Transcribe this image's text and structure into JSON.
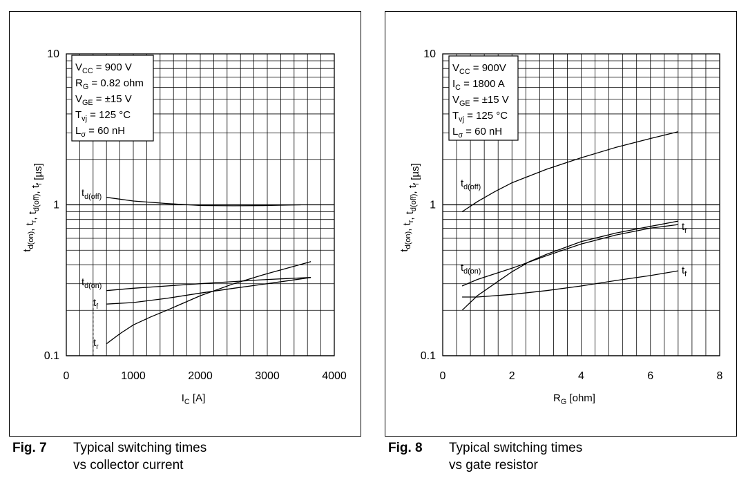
{
  "charts": [
    {
      "fig_label": "Fig. 7",
      "caption_line1": "Typical switching times",
      "caption_line2": "vs collector current",
      "chart_data": {
        "type": "line",
        "xlabel_main": "I",
        "xlabel_sub": "C",
        "xlabel_unit": " [A]",
        "ylabel": "t_d(on), t_r, t_d(off), t_f [µs]",
        "xlim": [
          0,
          4000
        ],
        "ylim": [
          0.1,
          10
        ],
        "y_scale": "log",
        "grid": true,
        "x_ticks": [
          "0",
          "1000",
          "2000",
          "3000",
          "4000"
        ],
        "y_ticks": [
          "0.1",
          "1",
          "10"
        ],
        "conditions": [
          {
            "main": "V",
            "sub": "CC",
            "rest": " = 900 V"
          },
          {
            "main": "R",
            "sub": "G",
            "rest": " = 0.82 ohm"
          },
          {
            "main": "V",
            "sub": "GE",
            "rest": " = ±15 V"
          },
          {
            "main": "T",
            "sub": "vj",
            "rest": " = 125 °C"
          },
          {
            "main": "L",
            "sub": "σ",
            "rest": " = 60 nH"
          }
        ],
        "series": [
          {
            "name_main": "t",
            "name_sub": "d(off)",
            "x": [
              600,
              1000,
              1500,
              2000,
              2500,
              3000,
              3500
            ],
            "y": [
              1.12,
              1.06,
              1.02,
              0.99,
              0.985,
              0.99,
              1.0
            ]
          },
          {
            "name_main": "t",
            "name_sub": "d(on)",
            "x": [
              600,
              1000,
              1500,
              2000,
              2500,
              3000,
              3650
            ],
            "y": [
              0.27,
              0.28,
              0.29,
              0.3,
              0.31,
              0.32,
              0.33
            ]
          },
          {
            "name_main": "t",
            "name_sub": "f",
            "x": [
              600,
              1000,
              1500,
              2000,
              2500,
              3000,
              3650
            ],
            "y": [
              0.22,
              0.225,
              0.24,
              0.26,
              0.28,
              0.3,
              0.33
            ]
          },
          {
            "name_main": "t",
            "name_sub": "r",
            "x": [
              600,
              800,
              1000,
              1250,
              1500,
              2000,
              2500,
              3000,
              3650
            ],
            "y": [
              0.12,
              0.14,
              0.16,
              0.18,
              0.2,
              0.25,
              0.3,
              0.35,
              0.42
            ]
          }
        ]
      }
    },
    {
      "fig_label": "Fig. 8",
      "caption_line1": "Typical switching times",
      "caption_line2": "vs  gate resistor",
      "chart_data": {
        "type": "line",
        "xlabel_main": "R",
        "xlabel_sub": "G",
        "xlabel_unit": " [ohm]",
        "ylabel": "t_d(on), t_r, t_d(off), t_f [µs]",
        "xlim": [
          0,
          8
        ],
        "ylim": [
          0.1,
          10
        ],
        "y_scale": "log",
        "grid": true,
        "x_ticks": [
          "0",
          "2",
          "4",
          "6",
          "8"
        ],
        "y_ticks": [
          "0.1",
          "1",
          "10"
        ],
        "conditions": [
          {
            "main": "V",
            "sub": "CC",
            "rest": " = 900V"
          },
          {
            "main": "I",
            "sub": "C",
            "rest": " = 1800 A"
          },
          {
            "main": "V",
            "sub": "GE",
            "rest": " = ±15 V"
          },
          {
            "main": "T",
            "sub": "vj",
            "rest": " = 125 °C"
          },
          {
            "main": "L",
            "sub": "σ",
            "rest": " = 60 nH"
          }
        ],
        "series": [
          {
            "name_main": "t",
            "name_sub": "d(off)",
            "x": [
              0.56,
              1.0,
              1.5,
              2.0,
              3.0,
              4.0,
              5.0,
              6.0,
              6.8
            ],
            "y": [
              0.9,
              1.05,
              1.22,
              1.4,
              1.72,
              2.05,
              2.4,
              2.75,
              3.05
            ]
          },
          {
            "name_main": "t",
            "name_sub": "r",
            "x": [
              0.56,
              1.0,
              1.5,
              2.0,
              2.5,
              3.0,
              4.0,
              5.0,
              6.0,
              6.8
            ],
            "y": [
              0.2,
              0.25,
              0.3,
              0.36,
              0.42,
              0.47,
              0.57,
              0.65,
              0.72,
              0.78
            ]
          },
          {
            "name_main": "t",
            "name_sub": "d(on)",
            "x": [
              0.56,
              1.0,
              2.0,
              3.0,
              4.0,
              5.0,
              6.0,
              6.8
            ],
            "y": [
              0.29,
              0.32,
              0.38,
              0.46,
              0.55,
              0.63,
              0.7,
              0.74
            ]
          },
          {
            "name_main": "t",
            "name_sub": "f",
            "x": [
              0.56,
              1.0,
              2.0,
              3.0,
              4.0,
              5.0,
              6.0,
              6.8
            ],
            "y": [
              0.245,
              0.245,
              0.255,
              0.27,
              0.29,
              0.315,
              0.34,
              0.365
            ]
          }
        ]
      }
    }
  ]
}
